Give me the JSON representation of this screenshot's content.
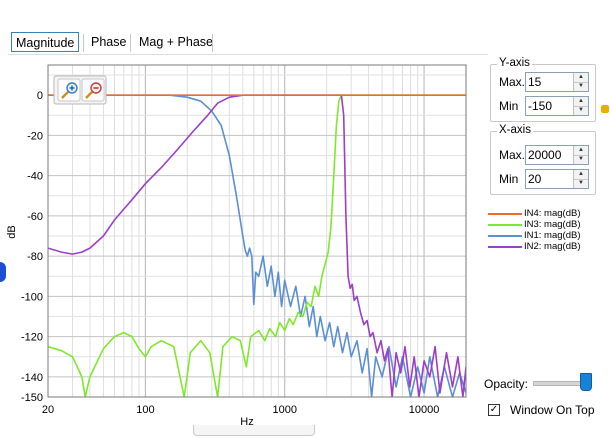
{
  "tabs": [
    {
      "label": "Magnitude",
      "active": true
    },
    {
      "label": "Phase",
      "active": false
    },
    {
      "label": "Mag + Phase",
      "active": false
    }
  ],
  "toolbar": {
    "zoom_in_icon": "zoom-in-icon",
    "zoom_out_icon": "zoom-out-icon"
  },
  "yaxis_panel": {
    "title": "Y-axis",
    "max_label": "Max.",
    "max_value": "15",
    "min_label": "Min",
    "min_value": "-150"
  },
  "xaxis_panel": {
    "title": "X-axis",
    "max_label": "Max.",
    "max_value": "20000",
    "min_label": "Min",
    "min_value": "20"
  },
  "opacity_label": "Opacity:",
  "opacity_value": 0.95,
  "window_on_top": {
    "label": "Window On Top",
    "checked": true
  },
  "chart_data": {
    "type": "line",
    "xlabel": "Hz",
    "ylabel": "dB",
    "xscale": "log",
    "xlim": [
      20,
      20000
    ],
    "ylim": [
      -150,
      15
    ],
    "x_ticks": [
      20,
      100,
      1000,
      10000
    ],
    "x_tick_labels": [
      "20",
      "100",
      "1000",
      "10000"
    ],
    "y_ticks": [
      0,
      -20,
      -40,
      -60,
      -80,
      -100,
      -120,
      -140,
      -150
    ],
    "y_tick_labels": [
      "0",
      "-20",
      "-40",
      "-60",
      "-80",
      "-100",
      "-120",
      "-140",
      "-150"
    ],
    "grid": true,
    "legend_position": "right",
    "series": [
      {
        "name": "IN4: mag(dB)",
        "color": "#ee6a2a",
        "points": [
          [
            20,
            0
          ],
          [
            2200,
            0
          ],
          [
            2600,
            0
          ],
          [
            20000,
            0
          ]
        ]
      },
      {
        "name": "IN3: mag(dB)",
        "color": "#7fe82c",
        "points": [
          [
            20,
            -125
          ],
          [
            25,
            -127
          ],
          [
            30,
            -130
          ],
          [
            35,
            -140
          ],
          [
            37,
            -150
          ],
          [
            40,
            -140
          ],
          [
            50,
            -126
          ],
          [
            60,
            -120
          ],
          [
            70,
            -118
          ],
          [
            80,
            -120
          ],
          [
            90,
            -126
          ],
          [
            100,
            -130
          ],
          [
            110,
            -125
          ],
          [
            130,
            -122
          ],
          [
            160,
            -125
          ],
          [
            190,
            -150
          ],
          [
            210,
            -128
          ],
          [
            250,
            -122
          ],
          [
            290,
            -128
          ],
          [
            330,
            -150
          ],
          [
            360,
            -125
          ],
          [
            420,
            -120
          ],
          [
            480,
            -122
          ],
          [
            530,
            -135
          ],
          [
            570,
            -120
          ],
          [
            650,
            -117
          ],
          [
            720,
            -122
          ],
          [
            780,
            -116
          ],
          [
            860,
            -120
          ],
          [
            920,
            -113
          ],
          [
            1000,
            -117
          ],
          [
            1080,
            -111
          ],
          [
            1150,
            -114
          ],
          [
            1250,
            -108
          ],
          [
            1350,
            -110
          ],
          [
            1450,
            -103
          ],
          [
            1550,
            -105
          ],
          [
            1650,
            -95
          ],
          [
            1750,
            -100
          ],
          [
            1850,
            -90
          ],
          [
            1950,
            -84
          ],
          [
            2050,
            -78
          ],
          [
            2150,
            -65
          ],
          [
            2250,
            -40
          ],
          [
            2350,
            -15
          ],
          [
            2450,
            -3
          ],
          [
            2550,
            0
          ],
          [
            20000,
            0
          ]
        ]
      },
      {
        "name": "IN1: mag(dB)",
        "color": "#5b8fd4",
        "points": [
          [
            20,
            0
          ],
          [
            150,
            0
          ],
          [
            200,
            -1
          ],
          [
            250,
            -3
          ],
          [
            300,
            -8
          ],
          [
            350,
            -15
          ],
          [
            400,
            -30
          ],
          [
            450,
            -50
          ],
          [
            500,
            -70
          ],
          [
            520,
            -77
          ],
          [
            540,
            -80
          ],
          [
            560,
            -76
          ],
          [
            580,
            -80
          ],
          [
            600,
            -104
          ],
          [
            620,
            -88
          ],
          [
            650,
            -90
          ],
          [
            700,
            -80
          ],
          [
            750,
            -95
          ],
          [
            800,
            -85
          ],
          [
            850,
            -100
          ],
          [
            900,
            -88
          ],
          [
            950,
            -105
          ],
          [
            1000,
            -92
          ],
          [
            1100,
            -105
          ],
          [
            1200,
            -95
          ],
          [
            1300,
            -110
          ],
          [
            1400,
            -100
          ],
          [
            1500,
            -115
          ],
          [
            1600,
            -105
          ],
          [
            1700,
            -120
          ],
          [
            1800,
            -110
          ],
          [
            1950,
            -122
          ],
          [
            2100,
            -113
          ],
          [
            2250,
            -125
          ],
          [
            2400,
            -115
          ],
          [
            2600,
            -128
          ],
          [
            2800,
            -118
          ],
          [
            3000,
            -130
          ],
          [
            3300,
            -122
          ],
          [
            3600,
            -138
          ],
          [
            3900,
            -126
          ],
          [
            4200,
            -150
          ],
          [
            4500,
            -130
          ],
          [
            5000,
            -140
          ],
          [
            5600,
            -125
          ],
          [
            6300,
            -145
          ],
          [
            7000,
            -130
          ],
          [
            8000,
            -150
          ],
          [
            9000,
            -135
          ],
          [
            10000,
            -148
          ],
          [
            11000,
            -130
          ],
          [
            12500,
            -150
          ],
          [
            14000,
            -135
          ],
          [
            16000,
            -150
          ],
          [
            18000,
            -138
          ],
          [
            20000,
            -148
          ]
        ]
      },
      {
        "name": "IN2: mag(dB)",
        "color": "#9b3ec8",
        "points": [
          [
            20,
            -76
          ],
          [
            25,
            -78
          ],
          [
            30,
            -79
          ],
          [
            35,
            -78
          ],
          [
            40,
            -76
          ],
          [
            50,
            -70
          ],
          [
            60,
            -62
          ],
          [
            80,
            -52
          ],
          [
            100,
            -44
          ],
          [
            130,
            -36
          ],
          [
            170,
            -27
          ],
          [
            220,
            -18
          ],
          [
            280,
            -10
          ],
          [
            330,
            -4
          ],
          [
            400,
            -1
          ],
          [
            500,
            0
          ],
          [
            2550,
            0
          ],
          [
            2650,
            -10
          ],
          [
            2750,
            -60
          ],
          [
            2850,
            -90
          ],
          [
            2950,
            -96
          ],
          [
            3050,
            -94
          ],
          [
            3150,
            -102
          ],
          [
            3300,
            -100
          ],
          [
            3500,
            -108
          ],
          [
            3700,
            -114
          ],
          [
            3900,
            -112
          ],
          [
            4100,
            -120
          ],
          [
            4300,
            -118
          ],
          [
            4600,
            -128
          ],
          [
            4900,
            -122
          ],
          [
            5200,
            -132
          ],
          [
            5500,
            -126
          ],
          [
            5900,
            -150
          ],
          [
            6300,
            -128
          ],
          [
            6800,
            -138
          ],
          [
            7300,
            -125
          ],
          [
            7900,
            -145
          ],
          [
            8500,
            -130
          ],
          [
            9200,
            -150
          ],
          [
            10000,
            -132
          ],
          [
            11000,
            -140
          ],
          [
            12000,
            -125
          ],
          [
            13000,
            -148
          ],
          [
            14500,
            -128
          ],
          [
            16000,
            -145
          ],
          [
            17500,
            -130
          ],
          [
            19000,
            -150
          ],
          [
            20000,
            -135
          ]
        ]
      }
    ]
  }
}
